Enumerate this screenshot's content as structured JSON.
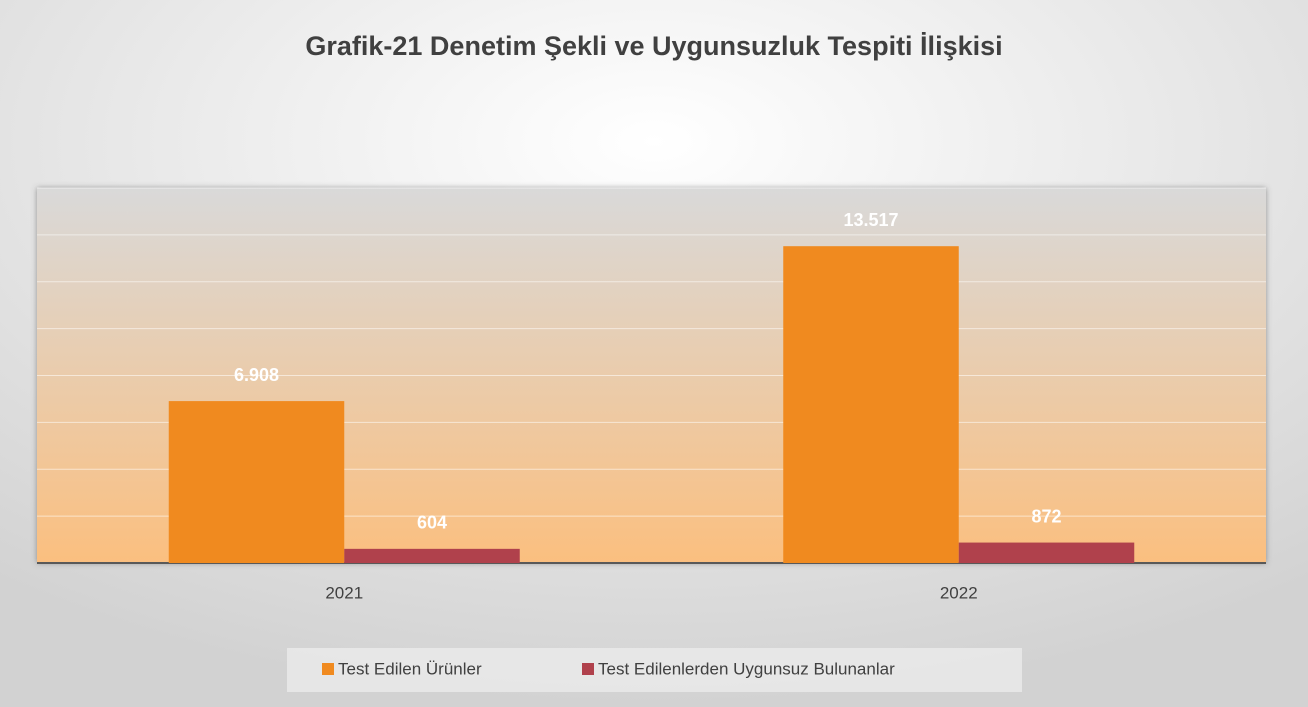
{
  "chart_data": {
    "type": "bar",
    "title": "Grafik-21 Denetim Şekli ve Uygunsuzluk Tespiti İlişkisi",
    "categories": [
      "2021",
      "2022"
    ],
    "series": [
      {
        "name": "Test Edilen Ürünler",
        "color": "#f08a1f",
        "values": [
          6908,
          13517
        ],
        "value_labels": [
          "6.908",
          "13.517"
        ]
      },
      {
        "name": "Test Edilenlerden Uygunsuz Bulunanlar",
        "color": "#b0414c",
        "values": [
          604,
          872
        ],
        "value_labels": [
          "604",
          "872"
        ]
      }
    ],
    "ylim": [
      0,
      16000
    ],
    "yticks": [
      0,
      2000,
      4000,
      6000,
      8000,
      10000,
      12000,
      14000,
      16000
    ],
    "grid": true,
    "legend": "bottom"
  }
}
